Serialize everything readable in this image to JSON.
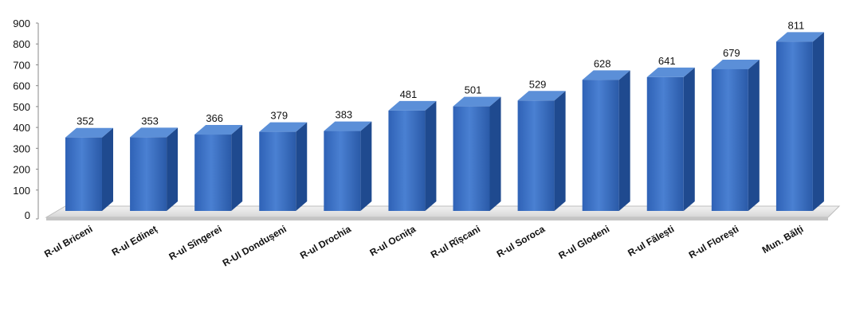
{
  "chart_data": {
    "type": "bar",
    "categories": [
      "R-ul Briceni",
      "R-ul Edineț",
      "R-ul Sîngerei",
      "R-Ul Dondușeni",
      "R-ul Drochia",
      "R-ul Ocnița",
      "R-ul Rîșcani",
      "R-ul Soroca",
      "R-ul Glodeni",
      "R-ul Fălești",
      "R-ul Florești",
      "Mun. Bălți"
    ],
    "values": [
      352,
      353,
      366,
      379,
      383,
      481,
      501,
      529,
      628,
      641,
      679,
      811
    ],
    "data_labels": [
      "352",
      "353",
      "366",
      "379",
      "383",
      "481",
      "501",
      "529",
      "628",
      "641",
      "679",
      "811"
    ],
    "yticks": [
      0,
      100,
      200,
      300,
      400,
      500,
      600,
      700,
      800,
      900
    ],
    "ytick_labels": [
      "0",
      "100",
      "200",
      "300",
      "400",
      "500",
      "600",
      "700",
      "800",
      "900"
    ],
    "ylim": [
      0,
      900
    ],
    "title": "",
    "xlabel": "",
    "ylabel": "",
    "grid": false,
    "legend": "none",
    "style": "3d-column",
    "colors": {
      "bar_front": "#3a6fc4",
      "bar_front_dark": "#2456a6",
      "bar_top": "#5b8fd8",
      "bar_side": "#1f4a8f",
      "floor": "#e2e2e2",
      "axis": "#888888"
    }
  }
}
